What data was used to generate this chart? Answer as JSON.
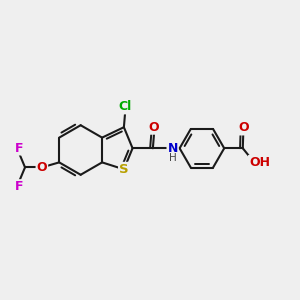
{
  "bg": "#EFEFEF",
  "bond_color": "#1a1a1a",
  "bw": 1.5,
  "colors": {
    "C": "#1a1a1a",
    "O": "#cc0000",
    "N": "#0000cc",
    "S": "#b8a000",
    "Cl": "#00aa00",
    "F": "#cc00cc",
    "H": "#444444"
  },
  "fs": 9,
  "fss": 7.5
}
